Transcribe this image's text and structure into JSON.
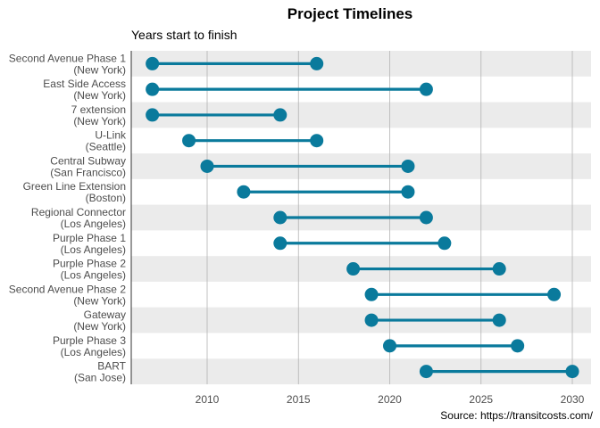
{
  "chart_data": {
    "type": "dumbbell",
    "title": "Project Timelines",
    "subtitle": "Years start to finish",
    "source": "Source: https://transitcosts.com/",
    "colors": {
      "point": "#0a7a9c",
      "stripe": "#ebebeb",
      "grid": "#b3b3b3",
      "axis": "#333333"
    },
    "xlim": [
      2006,
      2031
    ],
    "x_ticks": [
      2010,
      2015,
      2020,
      2025,
      2030
    ],
    "grid": true,
    "projects": [
      {
        "name": "Second Avenue Phase 1",
        "city": "(New York)",
        "start": 2007,
        "end": 2016
      },
      {
        "name": "East Side Access",
        "city": "(New York)",
        "start": 2007,
        "end": 2022
      },
      {
        "name": "7 extension",
        "city": "(New York)",
        "start": 2007,
        "end": 2014
      },
      {
        "name": "U-Link",
        "city": "(Seattle)",
        "start": 2009,
        "end": 2016
      },
      {
        "name": "Central Subway",
        "city": "(San Francisco)",
        "start": 2010,
        "end": 2021
      },
      {
        "name": "Green Line Extension",
        "city": "(Boston)",
        "start": 2012,
        "end": 2021
      },
      {
        "name": "Regional Connector",
        "city": "(Los Angeles)",
        "start": 2014,
        "end": 2022
      },
      {
        "name": "Purple Phase 1",
        "city": "(Los Angeles)",
        "start": 2014,
        "end": 2023
      },
      {
        "name": "Purple Phase 2",
        "city": "(Los Angeles)",
        "start": 2018,
        "end": 2026
      },
      {
        "name": "Second Avenue Phase 2",
        "city": "(New York)",
        "start": 2019,
        "end": 2029
      },
      {
        "name": "Gateway",
        "city": "(New York)",
        "start": 2019,
        "end": 2026
      },
      {
        "name": "Purple Phase 3",
        "city": "(Los Angeles)",
        "start": 2020,
        "end": 2027
      },
      {
        "name": "BART",
        "city": "(San Jose)",
        "start": 2022,
        "end": 2030
      }
    ]
  }
}
